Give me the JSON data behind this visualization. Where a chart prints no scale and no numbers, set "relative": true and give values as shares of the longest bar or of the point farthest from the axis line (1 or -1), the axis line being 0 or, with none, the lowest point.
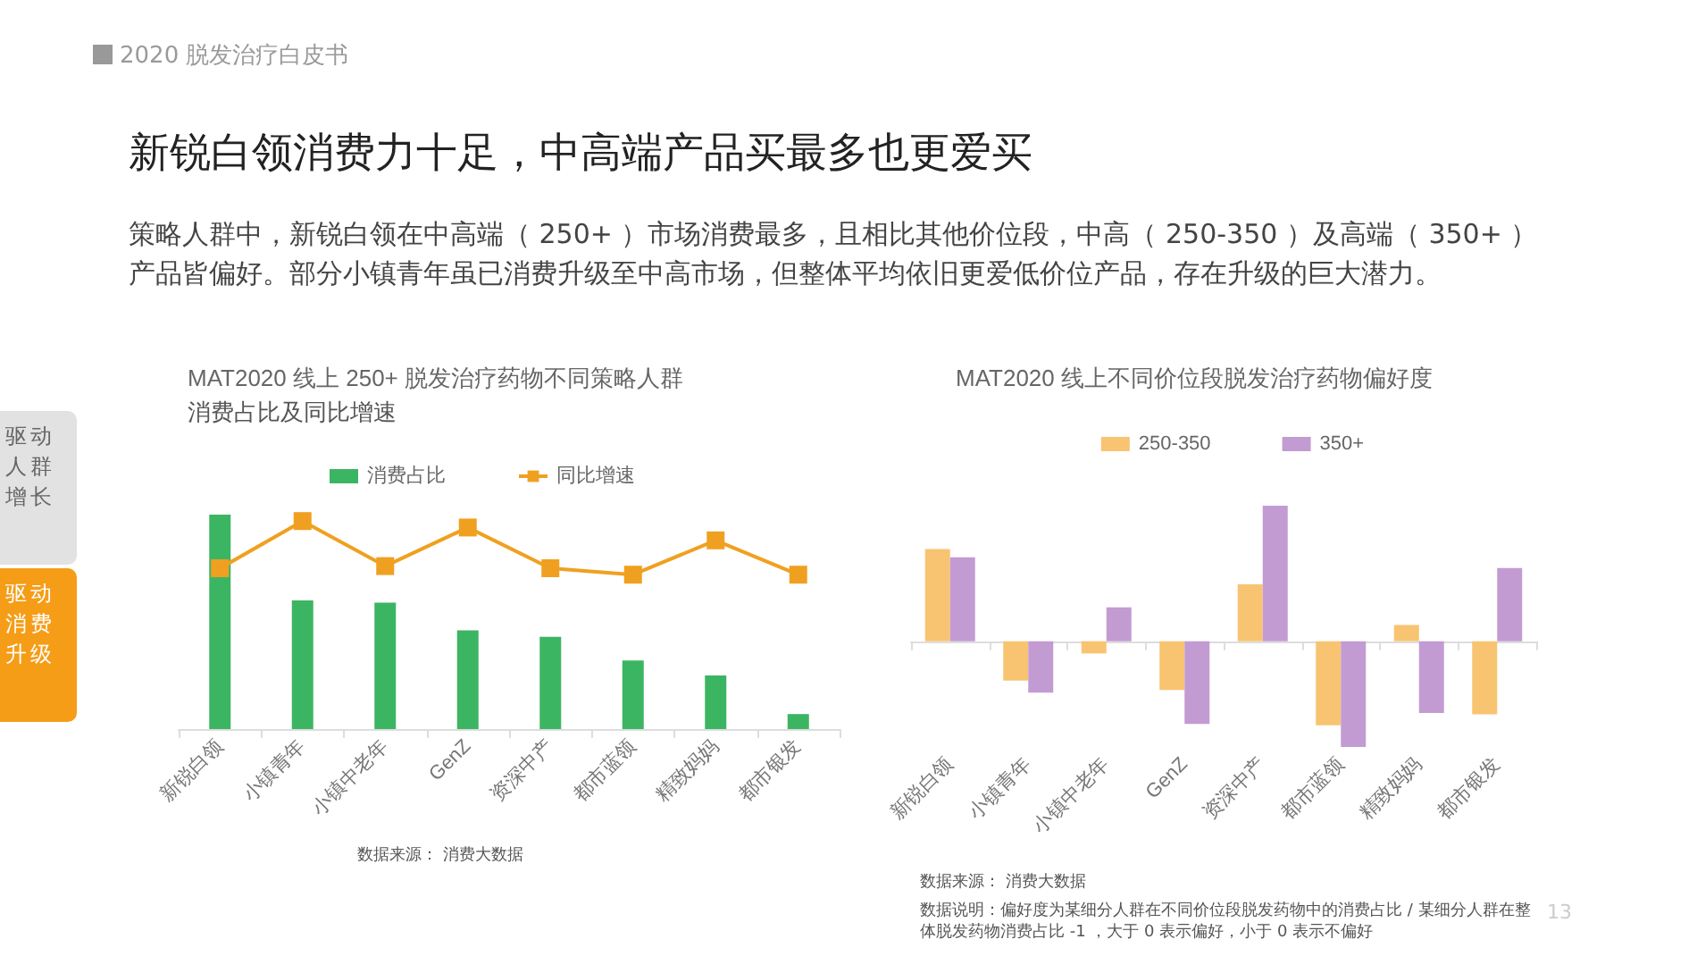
{
  "chart_data": [
    {
      "type": "other",
      "title": "新锐白领消费力十足，中高端产品买最多也更爱买",
      "subtitle": "策略人群中，新锐白领在中高端（ 250+ ）市场消费最多，且相比其他价位段，中高（ 250-350 ）及高端（ 350+ ）产品皆偏好。部分小镇青年虽已消费升级至中高市场，但整体平均依旧更爱低价位产品，存在升级的巨大潜力。",
      "annotations": [
        "2020 脱发治疗白皮书",
        "驱动人群增长",
        "驱动消费升级",
        "13"
      ]
    },
    {
      "type": "bar",
      "title": "MAT2020 线上 250+ 脱发治疗药物不同策略人群",
      "subtitle": "消费占比及同比增速",
      "relative": true,
      "legend": "top",
      "categories": [
        "新锐白领",
        "小镇青年",
        "小镇中老年",
        "GenZ",
        "资深中产",
        "都市蓝领",
        "精致妈妈",
        "都市银发"
      ],
      "series": [
        {
          "name": "消费占比",
          "color": "#3cb563",
          "values": [
            1,
            0.6,
            0.59,
            0.46,
            0.43,
            0.32,
            0.25,
            0.07
          ]
        },
        {
          "name": "同比增速",
          "type": "line",
          "color": "#f0a020",
          "marker": "square",
          "line_style": "solid",
          "values": [
            0.75,
            0.97,
            0.76,
            0.94,
            0.75,
            0.72,
            0.88,
            0.72
          ]
        }
      ],
      "annotations": [
        "数据来源： 消费大数据"
      ]
    },
    {
      "type": "bar",
      "title": "MAT2020 线上不同价位段脱发治疗药物偏好度",
      "relative": true,
      "legend": "top",
      "categories": [
        "新锐白领",
        "小镇青年",
        "小镇中老年",
        "GenZ",
        "资深中产",
        "都市蓝领",
        "精致妈妈",
        "都市银发"
      ],
      "series": [
        {
          "name": "250-350",
          "color": "#f8c471",
          "values": [
            0.68,
            -0.29,
            -0.09,
            -0.36,
            0.42,
            -0.62,
            0.12,
            -0.54
          ]
        },
        {
          "name": "350+",
          "color": "#c39bd3",
          "values": [
            0.62,
            -0.38,
            0.25,
            -0.61,
            1,
            -0.78,
            -0.53,
            0.54
          ]
        }
      ],
      "annotations": [
        "数据来源： 消费大数据",
        "数据说明：偏好度为某细分人群在不同价位段脱发药物中的消费占比 / 某细分人群在整体脱发药物消费占比 -1 ，大于 0 表示偏好，小于 0 表示不偏好"
      ]
    }
  ]
}
